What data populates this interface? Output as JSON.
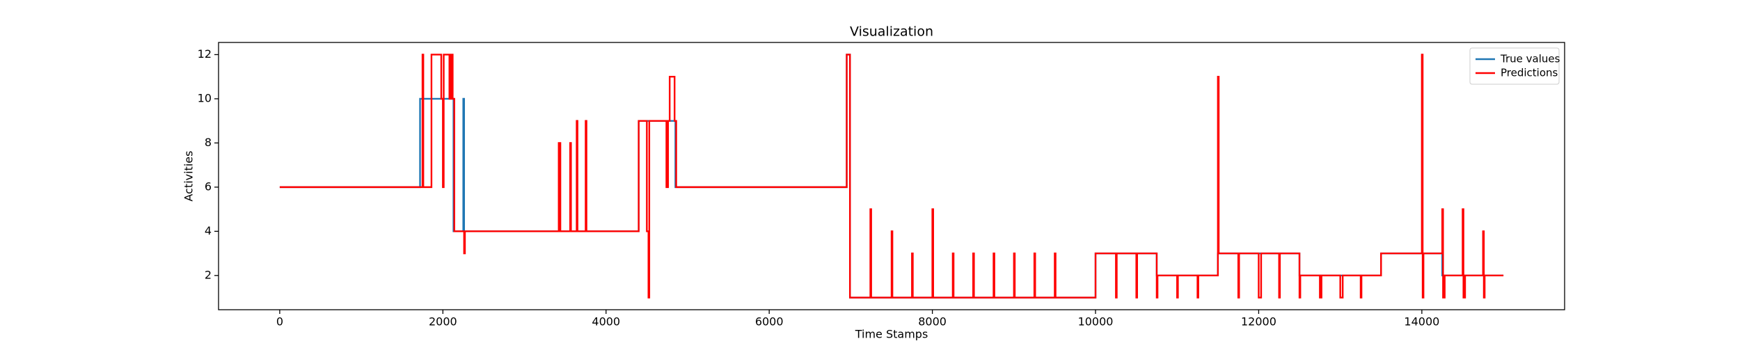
{
  "chart_data": {
    "type": "line",
    "title": "Visualization",
    "x_label": "Time Stamps",
    "y_label": "Activities",
    "xlim": [
      -750,
      15750
    ],
    "ylim": [
      0.45,
      12.55
    ],
    "xticks": [
      0,
      2000,
      4000,
      6000,
      8000,
      10000,
      12000,
      14000
    ],
    "yticks": [
      2,
      4,
      6,
      8,
      10,
      12
    ],
    "legend": "upper right",
    "series": [
      {
        "name": "True values",
        "color": "#1f77b4",
        "x": [
          0,
          1720,
          1720,
          2130,
          2130,
          2250,
          2250,
          2260,
          2260,
          4400,
          4400,
          4850,
          4850,
          6950,
          6950,
          6990,
          6990,
          10000,
          10000,
          10750,
          10750,
          11500,
          11500,
          12500,
          12500,
          13500,
          13500,
          14250,
          14250,
          15000
        ],
        "values": [
          6,
          6,
          10,
          10,
          4,
          4,
          10,
          10,
          4,
          4,
          9,
          9,
          6,
          6,
          12,
          12,
          1,
          1,
          3,
          3,
          2,
          2,
          3,
          3,
          2,
          2,
          3,
          3,
          2,
          2
        ]
      },
      {
        "name": "Predictions",
        "color": "#ff0000",
        "x": [
          0,
          1750,
          1750,
          1760,
          1760,
          1860,
          1860,
          1980,
          1980,
          2000,
          2000,
          2010,
          2010,
          2080,
          2080,
          2100,
          2100,
          2120,
          2120,
          2140,
          2140,
          2260,
          2260,
          2270,
          2270,
          3420,
          3420,
          3440,
          3440,
          3560,
          3560,
          3570,
          3570,
          3640,
          3640,
          3650,
          3650,
          3750,
          3750,
          3760,
          3760,
          4400,
          4400,
          4500,
          4500,
          4520,
          4520,
          4530,
          4530,
          4740,
          4740,
          4760,
          4760,
          4780,
          4780,
          4840,
          4840,
          4860,
          4860,
          6950,
          6950,
          6990,
          6990,
          7240,
          7240,
          7250,
          7250,
          7500,
          7500,
          7510,
          7510,
          7750,
          7750,
          7760,
          7760,
          8000,
          8000,
          8010,
          8010,
          8250,
          8250,
          8260,
          8260,
          8500,
          8500,
          8510,
          8510,
          8750,
          8750,
          8760,
          8760,
          9000,
          9000,
          9010,
          9010,
          9250,
          9250,
          9260,
          9260,
          9500,
          9500,
          9510,
          9510,
          10000,
          10000,
          10250,
          10250,
          10260,
          10260,
          10500,
          10500,
          10510,
          10510,
          10750,
          10750,
          10760,
          10760,
          11000,
          11000,
          11010,
          11010,
          11250,
          11250,
          11260,
          11260,
          11500,
          11500,
          11510,
          11510,
          11750,
          11750,
          11760,
          11760,
          12000,
          12000,
          12030,
          12030,
          12250,
          12250,
          12260,
          12260,
          12500,
          12500,
          12510,
          12510,
          12750,
          12750,
          12770,
          12770,
          13000,
          13000,
          13030,
          13030,
          13250,
          13250,
          13260,
          13260,
          13500,
          13500,
          14000,
          14000,
          14010,
          14010,
          14020,
          14020,
          14250,
          14250,
          14260,
          14260,
          14280,
          14280,
          14500,
          14500,
          14510,
          14510,
          14530,
          14530,
          14750,
          14750,
          14760,
          14760,
          14770,
          14770,
          15000
        ],
        "values": [
          6,
          6,
          12,
          12,
          6,
          6,
          12,
          12,
          10,
          10,
          6,
          6,
          12,
          12,
          10,
          10,
          12,
          12,
          10,
          10,
          4,
          4,
          3,
          3,
          4,
          4,
          8,
          8,
          4,
          4,
          8,
          8,
          4,
          4,
          9,
          9,
          4,
          4,
          9,
          9,
          4,
          4,
          9,
          9,
          4,
          4,
          1,
          1,
          9,
          9,
          6,
          6,
          9,
          9,
          11,
          11,
          9,
          9,
          6,
          6,
          12,
          12,
          1,
          1,
          5,
          5,
          1,
          1,
          4,
          4,
          1,
          1,
          3,
          3,
          1,
          1,
          5,
          5,
          1,
          1,
          3,
          3,
          1,
          1,
          3,
          3,
          1,
          1,
          3,
          3,
          1,
          1,
          3,
          3,
          1,
          1,
          3,
          3,
          1,
          1,
          3,
          3,
          1,
          1,
          3,
          3,
          1,
          1,
          3,
          3,
          1,
          1,
          3,
          3,
          1,
          1,
          2,
          2,
          1,
          1,
          2,
          2,
          1,
          1,
          2,
          2,
          11,
          11,
          3,
          3,
          1,
          1,
          3,
          3,
          1,
          1,
          3,
          3,
          1,
          1,
          3,
          3,
          1,
          1,
          2,
          2,
          1,
          1,
          2,
          2,
          1,
          1,
          2,
          2,
          1,
          1,
          2,
          2,
          3,
          3,
          12,
          12,
          1,
          1,
          3,
          3,
          5,
          5,
          1,
          1,
          2,
          2,
          5,
          5,
          1,
          1,
          2,
          2,
          4,
          4,
          1,
          1,
          2,
          2
        ]
      }
    ]
  }
}
